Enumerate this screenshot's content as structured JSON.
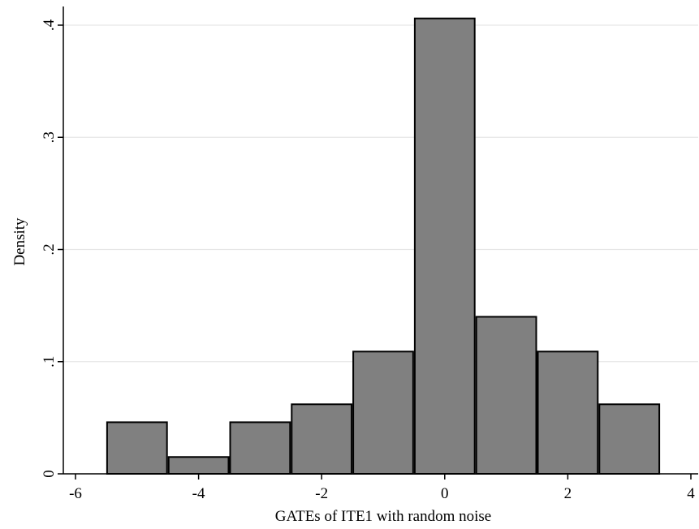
{
  "chart_data": {
    "type": "bar",
    "subtype": "histogram",
    "xlabel": "GATEs of ITE1 with random noise",
    "ylabel": "Density",
    "xlim": [
      -6.5,
      4
    ],
    "ylim": [
      0,
      0.42
    ],
    "x_ticks": [
      -6,
      -4,
      -2,
      0,
      2,
      4
    ],
    "x_tick_labels": [
      "-6",
      "-4",
      "-2",
      "0",
      "2",
      "4"
    ],
    "y_ticks": [
      0,
      0.1,
      0.2,
      0.3,
      0.4
    ],
    "y_tick_labels": [
      "0",
      ".1",
      ".2",
      ".3",
      ".4"
    ],
    "grid": true,
    "legend": "none",
    "bins": [
      {
        "x0": -5.5,
        "x1": -4.5,
        "value": 0.046
      },
      {
        "x0": -4.5,
        "x1": -3.5,
        "value": 0.015
      },
      {
        "x0": -3.5,
        "x1": -2.5,
        "value": 0.046
      },
      {
        "x0": -2.5,
        "x1": -1.5,
        "value": 0.062
      },
      {
        "x0": -1.5,
        "x1": -0.5,
        "value": 0.109
      },
      {
        "x0": -0.5,
        "x1": 0.5,
        "value": 0.406
      },
      {
        "x0": 0.5,
        "x1": 1.5,
        "value": 0.14
      },
      {
        "x0": 1.5,
        "x1": 2.5,
        "value": 0.109
      },
      {
        "x0": 2.5,
        "x1": 3.5,
        "value": 0.062
      }
    ],
    "colors": {
      "bar_fill": "#808080",
      "bar_stroke": "#000000",
      "grid": "#e6e6e6",
      "axis": "#000000"
    }
  }
}
